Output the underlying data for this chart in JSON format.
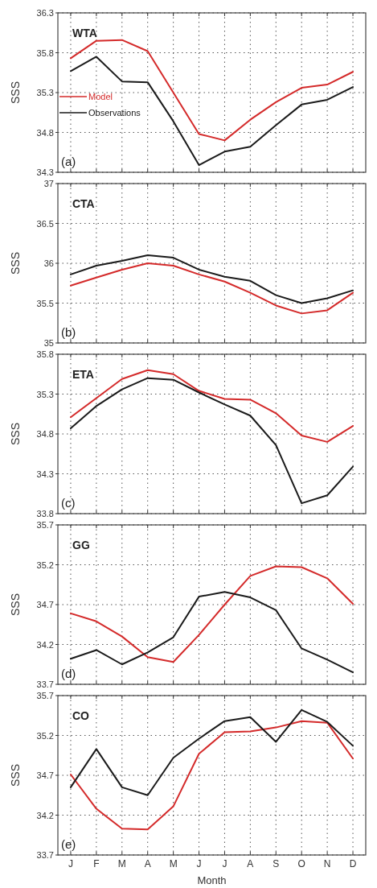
{
  "chart_data": [
    {
      "type": "line",
      "ylabel": "SSS",
      "annotations": [
        "WTA",
        "(a)"
      ],
      "categories": [
        null,
        null,
        null,
        null,
        null,
        null,
        null,
        null,
        null,
        null,
        null,
        null
      ],
      "ylim": [
        34.3,
        36.3
      ],
      "yticks": [
        34.3,
        34.8,
        35.3,
        35.8,
        36.3
      ],
      "grid": true,
      "legend": "left",
      "tick_labels": "y",
      "series": [
        {
          "name": "Model",
          "color": "#d42a2a",
          "values": [
            35.73,
            35.95,
            35.96,
            35.82,
            35.3,
            34.78,
            34.7,
            34.96,
            35.18,
            35.36,
            35.4,
            35.56
          ]
        },
        {
          "name": "Observations",
          "color": "#1a1a1a",
          "values": [
            35.57,
            35.75,
            35.44,
            35.43,
            34.94,
            34.39,
            34.56,
            34.62,
            34.89,
            35.15,
            35.21,
            35.37
          ]
        }
      ]
    },
    {
      "type": "line",
      "ylabel": "SSS",
      "annotations": [
        "CTA",
        "(b)"
      ],
      "categories": [
        null,
        null,
        null,
        null,
        null,
        null,
        null,
        null,
        null,
        null,
        null,
        null
      ],
      "ylim": [
        35,
        37
      ],
      "yticks": [
        35,
        35.5,
        36,
        36.5,
        37
      ],
      "grid": true,
      "tick_labels": "y",
      "series": [
        {
          "color": "#d42a2a",
          "values": [
            35.72,
            35.82,
            35.92,
            36.0,
            35.97,
            35.86,
            35.77,
            35.63,
            35.47,
            35.37,
            35.41,
            35.63
          ]
        },
        {
          "color": "#1a1a1a",
          "values": [
            35.86,
            35.97,
            36.03,
            36.1,
            36.07,
            35.92,
            35.83,
            35.78,
            35.6,
            35.5,
            35.56,
            35.66
          ]
        }
      ]
    },
    {
      "type": "line",
      "ylabel": "SSS",
      "annotations": [
        "ETA",
        "(c)"
      ],
      "categories": [
        null,
        null,
        null,
        null,
        null,
        null,
        null,
        null,
        null,
        null,
        null,
        null
      ],
      "ylim": [
        33.8,
        35.8
      ],
      "yticks": [
        33.8,
        34.3,
        34.8,
        35.3,
        35.8
      ],
      "grid": true,
      "tick_labels": "y",
      "series": [
        {
          "color": "#d42a2a",
          "values": [
            35.01,
            35.25,
            35.49,
            35.6,
            35.55,
            35.34,
            35.24,
            35.23,
            35.06,
            34.78,
            34.7,
            34.9
          ]
        },
        {
          "color": "#1a1a1a",
          "values": [
            34.87,
            35.15,
            35.36,
            35.5,
            35.48,
            35.32,
            35.17,
            35.03,
            34.66,
            33.93,
            34.03,
            34.39
          ]
        }
      ]
    },
    {
      "type": "line",
      "ylabel": "SSS",
      "annotations": [
        "GG",
        "(d)"
      ],
      "categories": [
        null,
        null,
        null,
        null,
        null,
        null,
        null,
        null,
        null,
        null,
        null,
        null
      ],
      "ylim": [
        33.7,
        35.7
      ],
      "yticks": [
        33.7,
        34.2,
        34.7,
        35.2,
        35.7
      ],
      "grid": true,
      "tick_labels": "y",
      "series": [
        {
          "color": "#d42a2a",
          "values": [
            34.59,
            34.49,
            34.3,
            34.04,
            33.98,
            34.32,
            34.7,
            35.06,
            35.18,
            35.17,
            35.03,
            34.71
          ]
        },
        {
          "color": "#1a1a1a",
          "values": [
            34.02,
            34.13,
            33.95,
            34.1,
            34.29,
            34.8,
            34.86,
            34.79,
            34.63,
            34.15,
            34.01,
            33.85
          ]
        }
      ]
    },
    {
      "type": "line",
      "ylabel": "SSS",
      "xlabel": "Month",
      "annotations": [
        "CO",
        "(e)"
      ],
      "categories": [
        "J",
        "F",
        "M",
        "A",
        "M",
        "J",
        "J",
        "A",
        "S",
        "O",
        "N",
        "D"
      ],
      "ylim": [
        33.7,
        35.7
      ],
      "yticks": [
        33.7,
        34.2,
        34.7,
        35.2,
        35.7
      ],
      "grid": true,
      "series": [
        {
          "color": "#d42a2a",
          "values": [
            34.71,
            34.28,
            34.03,
            34.02,
            34.31,
            34.97,
            35.24,
            35.25,
            35.3,
            35.38,
            35.36,
            34.91
          ]
        },
        {
          "color": "#1a1a1a",
          "values": [
            34.55,
            35.03,
            34.55,
            34.45,
            34.92,
            35.16,
            35.38,
            35.43,
            35.12,
            35.52,
            35.37,
            35.07
          ]
        }
      ]
    }
  ]
}
